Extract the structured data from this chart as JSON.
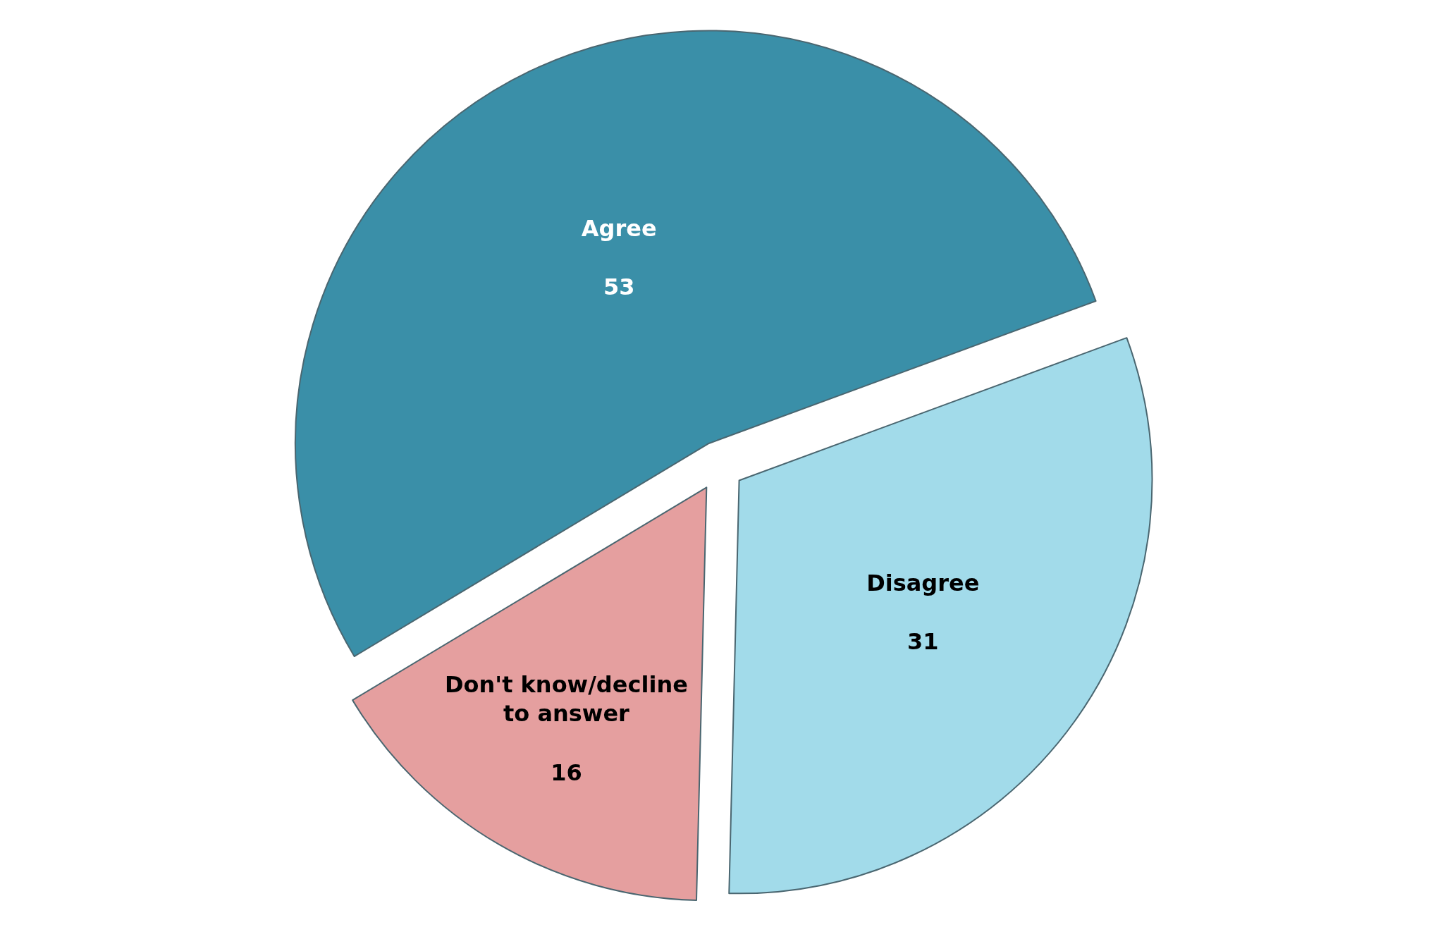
{
  "chart_data": {
    "type": "pie",
    "categories": [
      "Agree",
      "Disagree",
      "Don't know/decline to answer"
    ],
    "values": [
      53,
      31,
      16
    ],
    "colors": [
      "#3a8fa8",
      "#a2dbea",
      "#e59f9f"
    ],
    "data_labels": true,
    "legend": false
  }
}
